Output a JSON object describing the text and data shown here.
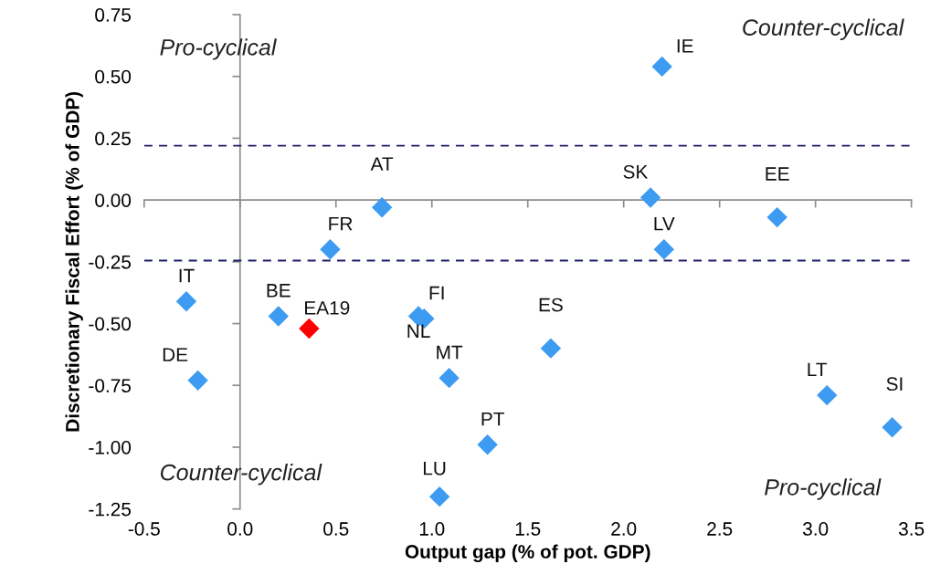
{
  "chart_data": {
    "type": "scatter",
    "xlabel": "Output gap (% of pot. GDP)",
    "ylabel": "Discretionary Fiscal Effort (% of GDP)",
    "xlim": [
      -0.5,
      3.5
    ],
    "xticks": [
      {
        "value": -0.5,
        "label": "-0.5"
      },
      {
        "value": 0,
        "label": "0.0"
      },
      {
        "value": 0.5,
        "label": "0.5"
      },
      {
        "value": 1,
        "label": "1.0"
      },
      {
        "value": 1.5,
        "label": "1.5"
      },
      {
        "value": 2,
        "label": "2.0"
      },
      {
        "value": 2.5,
        "label": "2.5"
      },
      {
        "value": 3,
        "label": "3.0"
      },
      {
        "value": 3.5,
        "label": "3.5"
      }
    ],
    "ylim": [
      -1.25,
      0.75
    ],
    "yticks": [
      {
        "value": -1.25,
        "label": "-1.25"
      },
      {
        "value": -1,
        "label": "-1.00"
      },
      {
        "value": -0.75,
        "label": "-0.75"
      },
      {
        "value": -0.5,
        "label": "-0.50"
      },
      {
        "value": -0.25,
        "label": "-0.25"
      },
      {
        "value": 0,
        "label": "0.00"
      },
      {
        "value": 0.25,
        "label": "0.25"
      },
      {
        "value": 0.5,
        "label": "0.50"
      },
      {
        "value": 0.75,
        "label": "0.75"
      }
    ],
    "marker": "diamond",
    "legend": false,
    "series": [
      {
        "name": "IT",
        "color": "#3d9bf2",
        "x": [
          -0.28
        ],
        "values": [
          -0.41
        ]
      },
      {
        "name": "DE",
        "color": "#3d9bf2",
        "x": [
          -0.22
        ],
        "values": [
          -0.73
        ]
      },
      {
        "name": "BE",
        "color": "#3d9bf2",
        "x": [
          0.2
        ],
        "values": [
          -0.47
        ]
      },
      {
        "name": "EA19",
        "color": "#ff0000",
        "x": [
          0.36
        ],
        "values": [
          -0.52
        ]
      },
      {
        "name": "FR",
        "color": "#3d9bf2",
        "x": [
          0.47
        ],
        "values": [
          -0.2
        ]
      },
      {
        "name": "AT",
        "color": "#3d9bf2",
        "x": [
          0.74
        ],
        "values": [
          -0.03
        ]
      },
      {
        "name": "FI",
        "color": "#3d9bf2",
        "x": [
          0.96
        ],
        "values": [
          -0.48
        ]
      },
      {
        "name": "NL",
        "color": "#3d9bf2",
        "x": [
          0.93
        ],
        "values": [
          -0.47
        ]
      },
      {
        "name": "MT",
        "color": "#3d9bf2",
        "x": [
          1.09
        ],
        "values": [
          -0.72
        ]
      },
      {
        "name": "LU",
        "color": "#3d9bf2",
        "x": [
          1.04
        ],
        "values": [
          -1.2
        ]
      },
      {
        "name": "PT",
        "color": "#3d9bf2",
        "x": [
          1.29
        ],
        "values": [
          -0.99
        ]
      },
      {
        "name": "ES",
        "color": "#3d9bf2",
        "x": [
          1.62
        ],
        "values": [
          -0.6
        ]
      },
      {
        "name": "SK",
        "color": "#3d9bf2",
        "x": [
          2.14
        ],
        "values": [
          0.01
        ]
      },
      {
        "name": "LV",
        "color": "#3d9bf2",
        "x": [
          2.21
        ],
        "values": [
          -0.2
        ]
      },
      {
        "name": "IE",
        "color": "#3d9bf2",
        "x": [
          2.2
        ],
        "values": [
          0.54
        ]
      },
      {
        "name": "EE",
        "color": "#3d9bf2",
        "x": [
          2.8
        ],
        "values": [
          -0.07
        ]
      },
      {
        "name": "LT",
        "color": "#3d9bf2",
        "x": [
          3.06
        ],
        "values": [
          -0.79
        ]
      },
      {
        "name": "SI",
        "color": "#3d9bf2",
        "x": [
          3.4
        ],
        "values": [
          -0.92
        ]
      }
    ],
    "ref_lines": [
      {
        "axis": "y",
        "value": 0.22,
        "color": "#1f1f6b",
        "line_style": "dashed"
      },
      {
        "axis": "y",
        "value": -0.245,
        "color": "#1f1f6b",
        "line_style": "dashed"
      }
    ],
    "annotations": [
      "Pro-cyclical",
      "Counter-cyclical",
      "Counter-cyclical",
      "Pro-cyclical"
    ]
  }
}
